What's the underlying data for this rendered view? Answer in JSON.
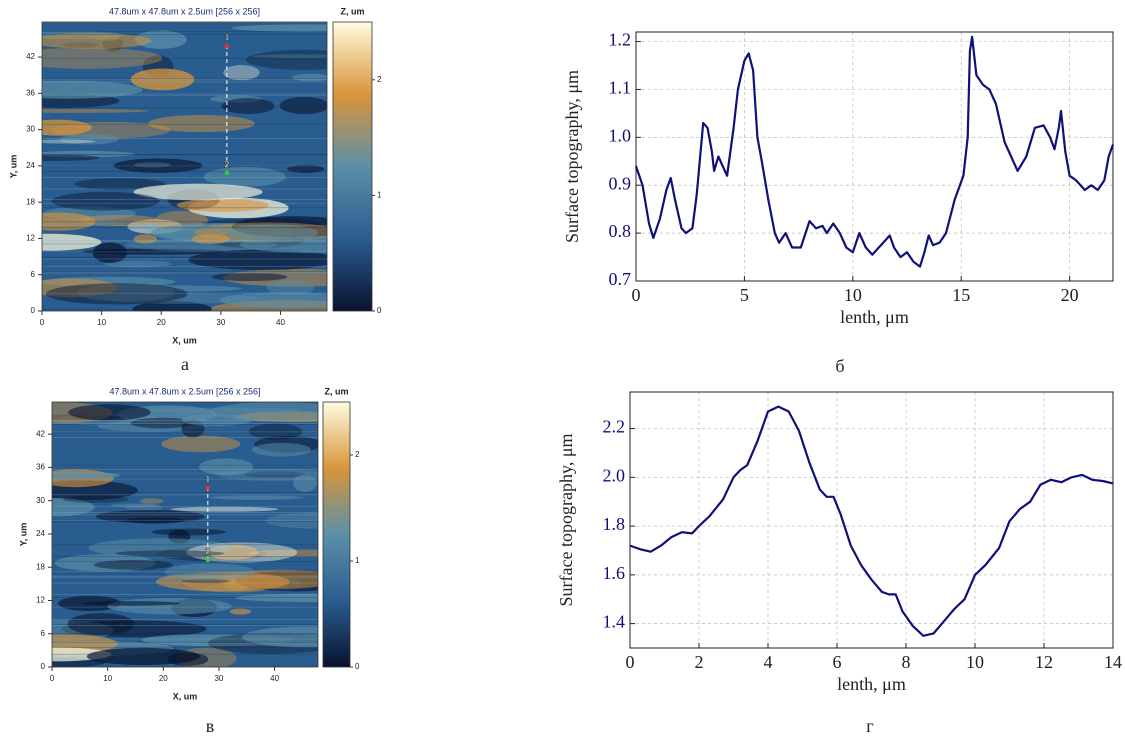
{
  "chart_data": [
    {
      "type": "image",
      "title": "47.8um x 47.8um x 2.5um [256 x 256]",
      "x_label": "X, um",
      "y_label": "Y, um",
      "colorbar_label": "Z, um",
      "caption": "а",
      "xlim": [
        0,
        47.8
      ],
      "ylim": [
        0,
        47.8
      ],
      "xticks": [
        0,
        10,
        20,
        30,
        40
      ],
      "yticks": [
        0,
        6,
        12,
        18,
        24,
        30,
        36,
        42
      ],
      "clim": [
        0,
        2.5
      ],
      "cticks": [
        0,
        1,
        2
      ],
      "colormap": [
        "#08122e",
        "#2a5d8f",
        "#5b8fa8",
        "#d9953a",
        "#fffce0"
      ],
      "markers": [
        {
          "label": "1",
          "x": 31,
          "y": 44
        },
        {
          "label": "2",
          "x": 31,
          "y": 23
        }
      ]
    },
    {
      "type": "line",
      "x_label": "lenth, μm",
      "y_label": "Surface topography, μm",
      "caption": "б",
      "color": "#10107a",
      "grid": true,
      "xlim": [
        0,
        22
      ],
      "ylim": [
        0.7,
        1.22
      ],
      "xticks": [
        0,
        5,
        10,
        15,
        20
      ],
      "yticks": [
        0.7,
        0.8,
        0.9,
        {
          "value": 1,
          "label": "1.0"
        },
        1.1,
        1.2
      ],
      "x": [
        0,
        0.3,
        0.6,
        0.8,
        1.1,
        1.4,
        1.6,
        1.8,
        2.1,
        2.3,
        2.6,
        2.8,
        3.1,
        3.3,
        3.5,
        3.6,
        3.8,
        4.0,
        4.2,
        4.5,
        4.7,
        5.0,
        5.2,
        5.4,
        5.6,
        5.8,
        6.1,
        6.4,
        6.6,
        6.9,
        7.2,
        7.6,
        8.0,
        8.3,
        8.6,
        8.8,
        9.1,
        9.4,
        9.7,
        10.0,
        10.3,
        10.6,
        10.9,
        11.2,
        11.4,
        11.7,
        11.9,
        12.2,
        12.5,
        12.8,
        13.1,
        13.3,
        13.5,
        13.7,
        14.0,
        14.3,
        14.7,
        15.1,
        15.3,
        15.4,
        15.5,
        15.7,
        16.0,
        16.3,
        16.6,
        17.0,
        17.3,
        17.6,
        18.0,
        18.4,
        18.8,
        19.1,
        19.3,
        19.5,
        19.6,
        19.8,
        20.0,
        20.3,
        20.7,
        21.0,
        21.3,
        21.6,
        21.8,
        22.0
      ],
      "values": [
        0.94,
        0.9,
        0.82,
        0.79,
        0.83,
        0.89,
        0.915,
        0.87,
        0.81,
        0.8,
        0.81,
        0.88,
        1.03,
        1.02,
        0.97,
        0.93,
        0.96,
        0.94,
        0.92,
        1.02,
        1.1,
        1.16,
        1.175,
        1.14,
        1.0,
        0.95,
        0.87,
        0.8,
        0.78,
        0.8,
        0.77,
        0.77,
        0.825,
        0.81,
        0.815,
        0.8,
        0.82,
        0.8,
        0.77,
        0.76,
        0.8,
        0.77,
        0.755,
        0.77,
        0.78,
        0.795,
        0.77,
        0.75,
        0.76,
        0.74,
        0.73,
        0.76,
        0.795,
        0.775,
        0.78,
        0.8,
        0.87,
        0.92,
        1.0,
        1.18,
        1.21,
        1.13,
        1.11,
        1.1,
        1.07,
        0.99,
        0.96,
        0.93,
        0.96,
        1.02,
        1.025,
        1.0,
        0.975,
        1.02,
        1.055,
        0.97,
        0.92,
        0.91,
        0.89,
        0.9,
        0.89,
        0.91,
        0.96,
        0.985
      ]
    },
    {
      "type": "image",
      "title": "47.8um x 47.8um x 2.5um [256 x 256]",
      "x_label": "X, um",
      "y_label": "Y, um",
      "colorbar_label": "Z, um",
      "caption": "в",
      "xlim": [
        0,
        47.8
      ],
      "ylim": [
        0,
        47.8
      ],
      "xticks": [
        0,
        10,
        20,
        30,
        40
      ],
      "yticks": [
        0,
        6,
        12,
        18,
        24,
        30,
        36,
        42
      ],
      "clim": [
        0,
        2.5
      ],
      "cticks": [
        0,
        1,
        2
      ],
      "colormap": [
        "#08122e",
        "#2a5d8f",
        "#5b8fa8",
        "#d9953a",
        "#fffce0"
      ],
      "markers": [
        {
          "label": "1",
          "x": 28,
          "y": 32.5
        },
        {
          "label": "2",
          "x": 28,
          "y": 19.5
        }
      ]
    },
    {
      "type": "line",
      "x_label": "lenth, μm",
      "y_label": "Surface topography, μm",
      "caption": "г",
      "color": "#10107a",
      "grid": true,
      "xlim": [
        0,
        14
      ],
      "ylim": [
        1.3,
        2.35
      ],
      "xticks": [
        0,
        2,
        4,
        6,
        8,
        10,
        12,
        14
      ],
      "yticks": [
        1.4,
        1.6,
        1.8,
        {
          "value": 2,
          "label": "2.0"
        },
        2.2
      ],
      "x": [
        0,
        0.3,
        0.6,
        0.9,
        1.2,
        1.5,
        1.8,
        2.0,
        2.3,
        2.7,
        3.0,
        3.2,
        3.4,
        3.7,
        4.0,
        4.3,
        4.6,
        4.9,
        5.2,
        5.5,
        5.7,
        5.9,
        6.1,
        6.4,
        6.7,
        7.0,
        7.3,
        7.5,
        7.7,
        7.9,
        8.2,
        8.5,
        8.8,
        9.1,
        9.4,
        9.7,
        10.0,
        10.3,
        10.7,
        11.0,
        11.3,
        11.6,
        11.9,
        12.2,
        12.5,
        12.8,
        13.1,
        13.4,
        13.7,
        14.0
      ],
      "values": [
        1.72,
        1.705,
        1.695,
        1.72,
        1.755,
        1.775,
        1.77,
        1.8,
        1.84,
        1.91,
        2.0,
        2.03,
        2.05,
        2.15,
        2.27,
        2.29,
        2.27,
        2.19,
        2.06,
        1.95,
        1.92,
        1.92,
        1.85,
        1.72,
        1.64,
        1.58,
        1.53,
        1.52,
        1.52,
        1.45,
        1.39,
        1.35,
        1.36,
        1.41,
        1.46,
        1.5,
        1.6,
        1.64,
        1.71,
        1.82,
        1.87,
        1.9,
        1.97,
        1.99,
        1.98,
        2.0,
        2.01,
        1.99,
        1.985,
        1.975
      ]
    }
  ]
}
